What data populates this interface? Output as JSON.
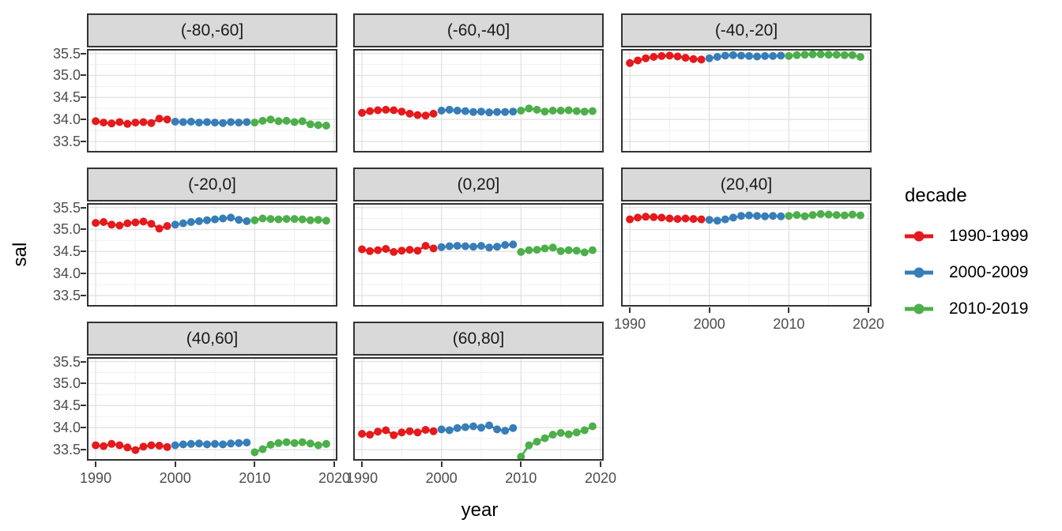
{
  "figure": {
    "x_axis_title": "year",
    "y_axis_title": "sal",
    "y_tick_labels": [
      "35.5",
      "35.0",
      "34.5",
      "34.0",
      "33.5"
    ],
    "x_tick_labels": [
      "1990",
      "2000",
      "2010",
      "2020"
    ]
  },
  "legend": {
    "title": "decade",
    "items": [
      {
        "label": "1990-1999",
        "color": "#E41A1C"
      },
      {
        "label": "2000-2009",
        "color": "#377EB8"
      },
      {
        "label": "2010-2019",
        "color": "#4DAF4A"
      }
    ]
  },
  "chart_data": {
    "type": "line",
    "xlabel": "year",
    "ylabel": "sal",
    "facet_variable": "latitude band",
    "series_variable": "decade",
    "legend_position": "right",
    "grid": true,
    "xlim": [
      1988.9,
      2020.4
    ],
    "ylim": [
      33.25,
      35.6
    ],
    "x_major_ticks": [
      1990,
      2000,
      2010,
      2020
    ],
    "x_minor_ticks": [
      1995,
      2005,
      2015
    ],
    "y_major_ticks": [
      33.5,
      34.0,
      34.5,
      35.0,
      35.5
    ],
    "y_minor_ticks": [
      33.75,
      34.25,
      34.75,
      35.25
    ],
    "series": [
      {
        "name": "1990-1999",
        "color": "#E41A1C",
        "years": [
          1990,
          1991,
          1992,
          1993,
          1994,
          1995,
          1996,
          1997,
          1998,
          1999
        ]
      },
      {
        "name": "2000-2009",
        "color": "#377EB8",
        "years": [
          2000,
          2001,
          2002,
          2003,
          2004,
          2005,
          2006,
          2007,
          2008,
          2009
        ]
      },
      {
        "name": "2010-2019",
        "color": "#4DAF4A",
        "years": [
          2010,
          2011,
          2012,
          2013,
          2014,
          2015,
          2016,
          2017,
          2018,
          2019
        ]
      }
    ],
    "facets": [
      {
        "label": "(-80,-60]",
        "values": {
          "1990-1999": [
            33.96,
            33.93,
            33.91,
            33.94,
            33.9,
            33.93,
            33.94,
            33.92,
            34.02,
            34.0
          ],
          "2000-2009": [
            33.95,
            33.94,
            33.95,
            33.93,
            33.94,
            33.93,
            33.92,
            33.94,
            33.93,
            33.94
          ],
          "2010-2019": [
            33.93,
            33.97,
            34.0,
            33.96,
            33.97,
            33.94,
            33.96,
            33.89,
            33.87,
            33.86
          ]
        }
      },
      {
        "label": "(-60,-40]",
        "values": {
          "1990-1999": [
            34.15,
            34.19,
            34.21,
            34.22,
            34.21,
            34.18,
            34.13,
            34.1,
            34.09,
            34.13
          ],
          "2000-2009": [
            34.2,
            34.22,
            34.2,
            34.19,
            34.17,
            34.18,
            34.16,
            34.17,
            34.17,
            34.18
          ],
          "2010-2019": [
            34.2,
            34.25,
            34.22,
            34.18,
            34.2,
            34.2,
            34.21,
            34.19,
            34.18,
            34.19
          ]
        }
      },
      {
        "label": "(-40,-20]",
        "values": {
          "1990-1999": [
            35.28,
            35.34,
            35.39,
            35.42,
            35.44,
            35.45,
            35.43,
            35.4,
            35.37,
            35.36
          ],
          "2000-2009": [
            35.39,
            35.42,
            35.45,
            35.46,
            35.45,
            35.44,
            35.43,
            35.44,
            35.44,
            35.45
          ],
          "2010-2019": [
            35.44,
            35.46,
            35.47,
            35.48,
            35.48,
            35.47,
            35.47,
            35.46,
            35.46,
            35.42
          ]
        }
      },
      {
        "label": "(-20,0]",
        "values": {
          "1990-1999": [
            35.15,
            35.17,
            35.11,
            35.09,
            35.14,
            35.16,
            35.18,
            35.13,
            35.02,
            35.08
          ],
          "2000-2009": [
            35.11,
            35.14,
            35.17,
            35.19,
            35.21,
            35.23,
            35.25,
            35.27,
            35.22,
            35.19
          ],
          "2010-2019": [
            35.21,
            35.25,
            35.24,
            35.23,
            35.24,
            35.24,
            35.23,
            35.21,
            35.22,
            35.2
          ]
        }
      },
      {
        "label": "(0,20]",
        "values": {
          "1990-1999": [
            34.55,
            34.51,
            34.53,
            34.56,
            34.49,
            34.52,
            34.54,
            34.52,
            34.63,
            34.57
          ],
          "2000-2009": [
            34.6,
            34.62,
            34.63,
            34.62,
            34.61,
            34.63,
            34.59,
            34.61,
            34.65,
            34.66
          ],
          "2010-2019": [
            34.49,
            34.53,
            34.54,
            34.57,
            34.59,
            34.51,
            34.53,
            34.52,
            34.48,
            34.53
          ]
        }
      },
      {
        "label": "(20,40]",
        "values": {
          "1990-1999": [
            35.23,
            35.27,
            35.29,
            35.28,
            35.27,
            35.25,
            35.24,
            35.25,
            35.24,
            35.23
          ],
          "2000-2009": [
            35.22,
            35.2,
            35.23,
            35.27,
            35.31,
            35.32,
            35.31,
            35.3,
            35.31,
            35.3
          ],
          "2010-2019": [
            35.31,
            35.33,
            35.3,
            35.33,
            35.35,
            35.34,
            35.33,
            35.32,
            35.34,
            35.32
          ]
        }
      },
      {
        "label": "(40,60]",
        "values": {
          "1990-1999": [
            33.6,
            33.58,
            33.63,
            33.6,
            33.55,
            33.49,
            33.57,
            33.6,
            33.59,
            33.56
          ],
          "2000-2009": [
            33.6,
            33.62,
            33.63,
            33.64,
            33.62,
            33.63,
            33.62,
            33.64,
            33.65,
            33.66
          ],
          "2010-2019": [
            33.44,
            33.51,
            33.61,
            33.65,
            33.67,
            33.65,
            33.67,
            33.64,
            33.6,
            33.63
          ]
        }
      },
      {
        "label": "(60,80]",
        "values": {
          "1990-1999": [
            33.86,
            33.84,
            33.91,
            33.94,
            33.83,
            33.89,
            33.92,
            33.89,
            33.95,
            33.92
          ],
          "2000-2009": [
            33.96,
            33.94,
            33.99,
            34.01,
            34.03,
            34.0,
            34.05,
            33.96,
            33.93,
            33.99
          ],
          "2010-2019": [
            33.34,
            33.6,
            33.68,
            33.76,
            33.84,
            33.88,
            33.85,
            33.89,
            33.94,
            34.03
          ]
        }
      }
    ]
  }
}
